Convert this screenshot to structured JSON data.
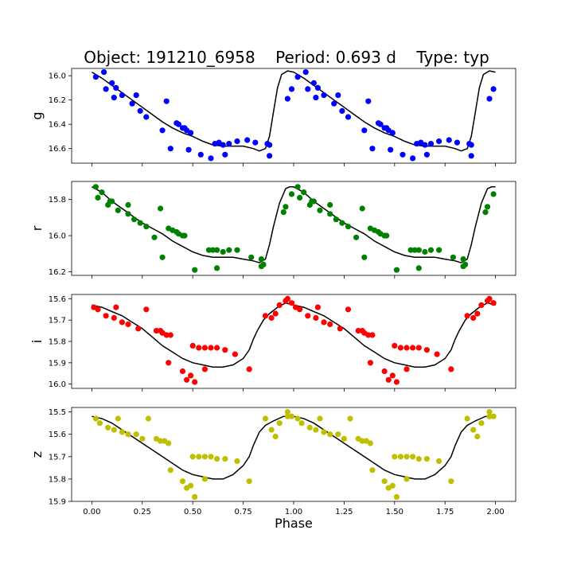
{
  "header": {
    "object_text": "Object: 191210_6958",
    "period_text": "Period: 0.693 d",
    "type_text": "Type: typ"
  },
  "xaxis": {
    "label": "Phase",
    "xlim": [
      -0.1,
      2.1
    ],
    "ticks": [
      0.0,
      0.25,
      0.5,
      0.75,
      1.0,
      1.25,
      1.5,
      1.75,
      2.0
    ],
    "tick_labels": [
      "0.00",
      "0.25",
      "0.50",
      "0.75",
      "1.00",
      "1.25",
      "1.50",
      "1.75",
      "2.00"
    ]
  },
  "colors": {
    "g": "#0000ff",
    "r": "#008000",
    "i": "#ff0000",
    "z": "#bfbf00",
    "model": "#000000"
  },
  "chart_data": [
    {
      "type": "scatter",
      "band": "g",
      "ylabel": "g",
      "ylim": [
        16.72,
        15.94
      ],
      "yticks": [
        16.0,
        16.2,
        16.4,
        16.6
      ],
      "ytick_labels": [
        "16.0",
        "16.2",
        "16.4",
        "16.6"
      ],
      "points_phase": [
        [
          0.02,
          16.01
        ],
        [
          0.06,
          15.97
        ],
        [
          0.07,
          16.11
        ],
        [
          0.1,
          16.06
        ],
        [
          0.11,
          16.18
        ],
        [
          0.12,
          16.1
        ],
        [
          0.15,
          16.16
        ],
        [
          0.2,
          16.23
        ],
        [
          0.22,
          16.16
        ],
        [
          0.24,
          16.29
        ],
        [
          0.27,
          16.34
        ],
        [
          0.35,
          16.45
        ],
        [
          0.37,
          16.21
        ],
        [
          0.39,
          16.6
        ],
        [
          0.42,
          16.39
        ],
        [
          0.43,
          16.4
        ],
        [
          0.45,
          16.43
        ],
        [
          0.46,
          16.43
        ],
        [
          0.47,
          16.45
        ],
        [
          0.48,
          16.61
        ],
        [
          0.49,
          16.47
        ],
        [
          0.54,
          16.65
        ],
        [
          0.59,
          16.68
        ],
        [
          0.61,
          16.56
        ],
        [
          0.63,
          16.55
        ],
        [
          0.65,
          16.57
        ],
        [
          0.66,
          16.65
        ],
        [
          0.68,
          16.56
        ],
        [
          0.72,
          16.54
        ],
        [
          0.77,
          16.53
        ],
        [
          0.81,
          16.55
        ],
        [
          0.87,
          16.56
        ],
        [
          0.88,
          16.57
        ],
        [
          0.88,
          16.66
        ],
        [
          0.97,
          16.19
        ],
        [
          0.99,
          16.11
        ]
      ],
      "model_phase": [
        [
          0.0,
          15.97
        ],
        [
          0.05,
          16.02
        ],
        [
          0.1,
          16.08
        ],
        [
          0.15,
          16.14
        ],
        [
          0.2,
          16.2
        ],
        [
          0.25,
          16.26
        ],
        [
          0.3,
          16.32
        ],
        [
          0.35,
          16.38
        ],
        [
          0.4,
          16.43
        ],
        [
          0.45,
          16.47
        ],
        [
          0.5,
          16.5
        ],
        [
          0.55,
          16.54
        ],
        [
          0.6,
          16.57
        ],
        [
          0.65,
          16.58
        ],
        [
          0.7,
          16.58
        ],
        [
          0.75,
          16.58
        ],
        [
          0.8,
          16.6
        ],
        [
          0.83,
          16.62
        ],
        [
          0.86,
          16.6
        ],
        [
          0.88,
          16.5
        ],
        [
          0.9,
          16.3
        ],
        [
          0.92,
          16.1
        ],
        [
          0.94,
          15.99
        ],
        [
          0.97,
          15.96
        ],
        [
          1.0,
          15.97
        ]
      ]
    },
    {
      "type": "scatter",
      "band": "r",
      "ylabel": "r",
      "ylim": [
        16.22,
        15.7
      ],
      "yticks": [
        15.8,
        16.0,
        16.2
      ],
      "ytick_labels": [
        "15.8",
        "16.0",
        "16.2"
      ],
      "points_phase": [
        [
          0.02,
          15.73
        ],
        [
          0.03,
          15.79
        ],
        [
          0.05,
          15.76
        ],
        [
          0.08,
          15.83
        ],
        [
          0.09,
          15.81
        ],
        [
          0.1,
          15.81
        ],
        [
          0.13,
          15.86
        ],
        [
          0.18,
          15.88
        ],
        [
          0.18,
          15.83
        ],
        [
          0.21,
          15.91
        ],
        [
          0.24,
          15.93
        ],
        [
          0.27,
          15.95
        ],
        [
          0.31,
          16.01
        ],
        [
          0.34,
          15.85
        ],
        [
          0.35,
          16.12
        ],
        [
          0.38,
          15.96
        ],
        [
          0.4,
          15.97
        ],
        [
          0.42,
          15.98
        ],
        [
          0.43,
          15.99
        ],
        [
          0.45,
          16.0
        ],
        [
          0.46,
          16.0
        ],
        [
          0.51,
          16.19
        ],
        [
          0.58,
          16.08
        ],
        [
          0.6,
          16.08
        ],
        [
          0.62,
          16.08
        ],
        [
          0.62,
          16.18
        ],
        [
          0.65,
          16.09
        ],
        [
          0.68,
          16.08
        ],
        [
          0.72,
          16.08
        ],
        [
          0.79,
          16.12
        ],
        [
          0.84,
          16.13
        ],
        [
          0.84,
          16.17
        ],
        [
          0.85,
          16.16
        ],
        [
          0.95,
          15.87
        ],
        [
          0.96,
          15.84
        ],
        [
          0.99,
          15.77
        ]
      ],
      "model_phase": [
        [
          0.0,
          15.73
        ],
        [
          0.05,
          15.76
        ],
        [
          0.1,
          15.81
        ],
        [
          0.15,
          15.85
        ],
        [
          0.2,
          15.89
        ],
        [
          0.25,
          15.93
        ],
        [
          0.3,
          15.96
        ],
        [
          0.35,
          15.99
        ],
        [
          0.4,
          16.03
        ],
        [
          0.45,
          16.06
        ],
        [
          0.5,
          16.09
        ],
        [
          0.55,
          16.11
        ],
        [
          0.6,
          16.12
        ],
        [
          0.65,
          16.12
        ],
        [
          0.7,
          16.12
        ],
        [
          0.75,
          16.13
        ],
        [
          0.8,
          16.14
        ],
        [
          0.83,
          16.15
        ],
        [
          0.86,
          16.13
        ],
        [
          0.88,
          16.05
        ],
        [
          0.9,
          15.95
        ],
        [
          0.93,
          15.82
        ],
        [
          0.96,
          15.74
        ],
        [
          0.98,
          15.73
        ],
        [
          1.0,
          15.73
        ]
      ]
    },
    {
      "type": "scatter",
      "band": "i",
      "ylabel": "i",
      "ylim": [
        16.02,
        15.58
      ],
      "yticks": [
        15.6,
        15.7,
        15.8,
        15.9,
        16.0
      ],
      "ytick_labels": [
        "15.6",
        "15.7",
        "15.8",
        "15.9",
        "16.0"
      ],
      "points_phase": [
        [
          0.01,
          15.64
        ],
        [
          0.03,
          15.65
        ],
        [
          0.07,
          15.68
        ],
        [
          0.11,
          15.69
        ],
        [
          0.12,
          15.64
        ],
        [
          0.15,
          15.71
        ],
        [
          0.18,
          15.72
        ],
        [
          0.23,
          15.74
        ],
        [
          0.27,
          15.65
        ],
        [
          0.32,
          15.75
        ],
        [
          0.34,
          15.75
        ],
        [
          0.35,
          15.76
        ],
        [
          0.37,
          15.77
        ],
        [
          0.38,
          15.9
        ],
        [
          0.39,
          15.77
        ],
        [
          0.45,
          15.94
        ],
        [
          0.47,
          15.98
        ],
        [
          0.49,
          15.96
        ],
        [
          0.5,
          15.82
        ],
        [
          0.51,
          15.99
        ],
        [
          0.53,
          15.83
        ],
        [
          0.56,
          15.83
        ],
        [
          0.56,
          15.93
        ],
        [
          0.59,
          15.83
        ],
        [
          0.62,
          15.83
        ],
        [
          0.66,
          15.84
        ],
        [
          0.71,
          15.86
        ],
        [
          0.78,
          15.93
        ],
        [
          0.86,
          15.68
        ],
        [
          0.89,
          15.69
        ],
        [
          0.91,
          15.67
        ],
        [
          0.93,
          15.63
        ],
        [
          0.96,
          15.61
        ],
        [
          0.97,
          15.6
        ],
        [
          0.99,
          15.62
        ]
      ],
      "model_phase": [
        [
          0.0,
          15.63
        ],
        [
          0.05,
          15.64
        ],
        [
          0.1,
          15.66
        ],
        [
          0.15,
          15.68
        ],
        [
          0.2,
          15.71
        ],
        [
          0.25,
          15.74
        ],
        [
          0.3,
          15.78
        ],
        [
          0.35,
          15.82
        ],
        [
          0.4,
          15.85
        ],
        [
          0.45,
          15.88
        ],
        [
          0.5,
          15.9
        ],
        [
          0.55,
          15.91
        ],
        [
          0.6,
          15.92
        ],
        [
          0.65,
          15.92
        ],
        [
          0.7,
          15.91
        ],
        [
          0.75,
          15.88
        ],
        [
          0.78,
          15.84
        ],
        [
          0.8,
          15.79
        ],
        [
          0.82,
          15.75
        ],
        [
          0.85,
          15.7
        ],
        [
          0.88,
          15.67
        ],
        [
          0.92,
          15.64
        ],
        [
          0.96,
          15.62
        ],
        [
          1.0,
          15.63
        ]
      ]
    },
    {
      "type": "scatter",
      "band": "z",
      "ylabel": "z",
      "ylim": [
        15.9,
        15.48
      ],
      "yticks": [
        15.5,
        15.6,
        15.7,
        15.8,
        15.9
      ],
      "ytick_labels": [
        "15.5",
        "15.6",
        "15.7",
        "15.8",
        "15.9"
      ],
      "points_phase": [
        [
          0.02,
          15.53
        ],
        [
          0.04,
          15.55
        ],
        [
          0.08,
          15.57
        ],
        [
          0.11,
          15.58
        ],
        [
          0.13,
          15.53
        ],
        [
          0.15,
          15.59
        ],
        [
          0.18,
          15.6
        ],
        [
          0.22,
          15.6
        ],
        [
          0.25,
          15.62
        ],
        [
          0.28,
          15.53
        ],
        [
          0.32,
          15.62
        ],
        [
          0.34,
          15.63
        ],
        [
          0.36,
          15.63
        ],
        [
          0.38,
          15.64
        ],
        [
          0.39,
          15.76
        ],
        [
          0.45,
          15.81
        ],
        [
          0.47,
          15.84
        ],
        [
          0.49,
          15.83
        ],
        [
          0.5,
          15.7
        ],
        [
          0.51,
          15.88
        ],
        [
          0.53,
          15.7
        ],
        [
          0.56,
          15.7
        ],
        [
          0.56,
          15.8
        ],
        [
          0.59,
          15.7
        ],
        [
          0.62,
          15.71
        ],
        [
          0.66,
          15.71
        ],
        [
          0.72,
          15.72
        ],
        [
          0.78,
          15.81
        ],
        [
          0.86,
          15.53
        ],
        [
          0.89,
          15.58
        ],
        [
          0.91,
          15.61
        ],
        [
          0.93,
          15.55
        ],
        [
          0.97,
          15.5
        ],
        [
          0.97,
          15.52
        ],
        [
          0.99,
          15.52
        ]
      ],
      "model_phase": [
        [
          0.0,
          15.52
        ],
        [
          0.05,
          15.53
        ],
        [
          0.1,
          15.55
        ],
        [
          0.15,
          15.58
        ],
        [
          0.2,
          15.61
        ],
        [
          0.25,
          15.64
        ],
        [
          0.3,
          15.67
        ],
        [
          0.35,
          15.7
        ],
        [
          0.4,
          15.73
        ],
        [
          0.45,
          15.76
        ],
        [
          0.5,
          15.78
        ],
        [
          0.55,
          15.79
        ],
        [
          0.6,
          15.8
        ],
        [
          0.65,
          15.8
        ],
        [
          0.7,
          15.78
        ],
        [
          0.75,
          15.74
        ],
        [
          0.78,
          15.7
        ],
        [
          0.8,
          15.65
        ],
        [
          0.83,
          15.59
        ],
        [
          0.86,
          15.56
        ],
        [
          0.9,
          15.54
        ],
        [
          0.95,
          15.52
        ],
        [
          1.0,
          15.52
        ]
      ]
    }
  ]
}
